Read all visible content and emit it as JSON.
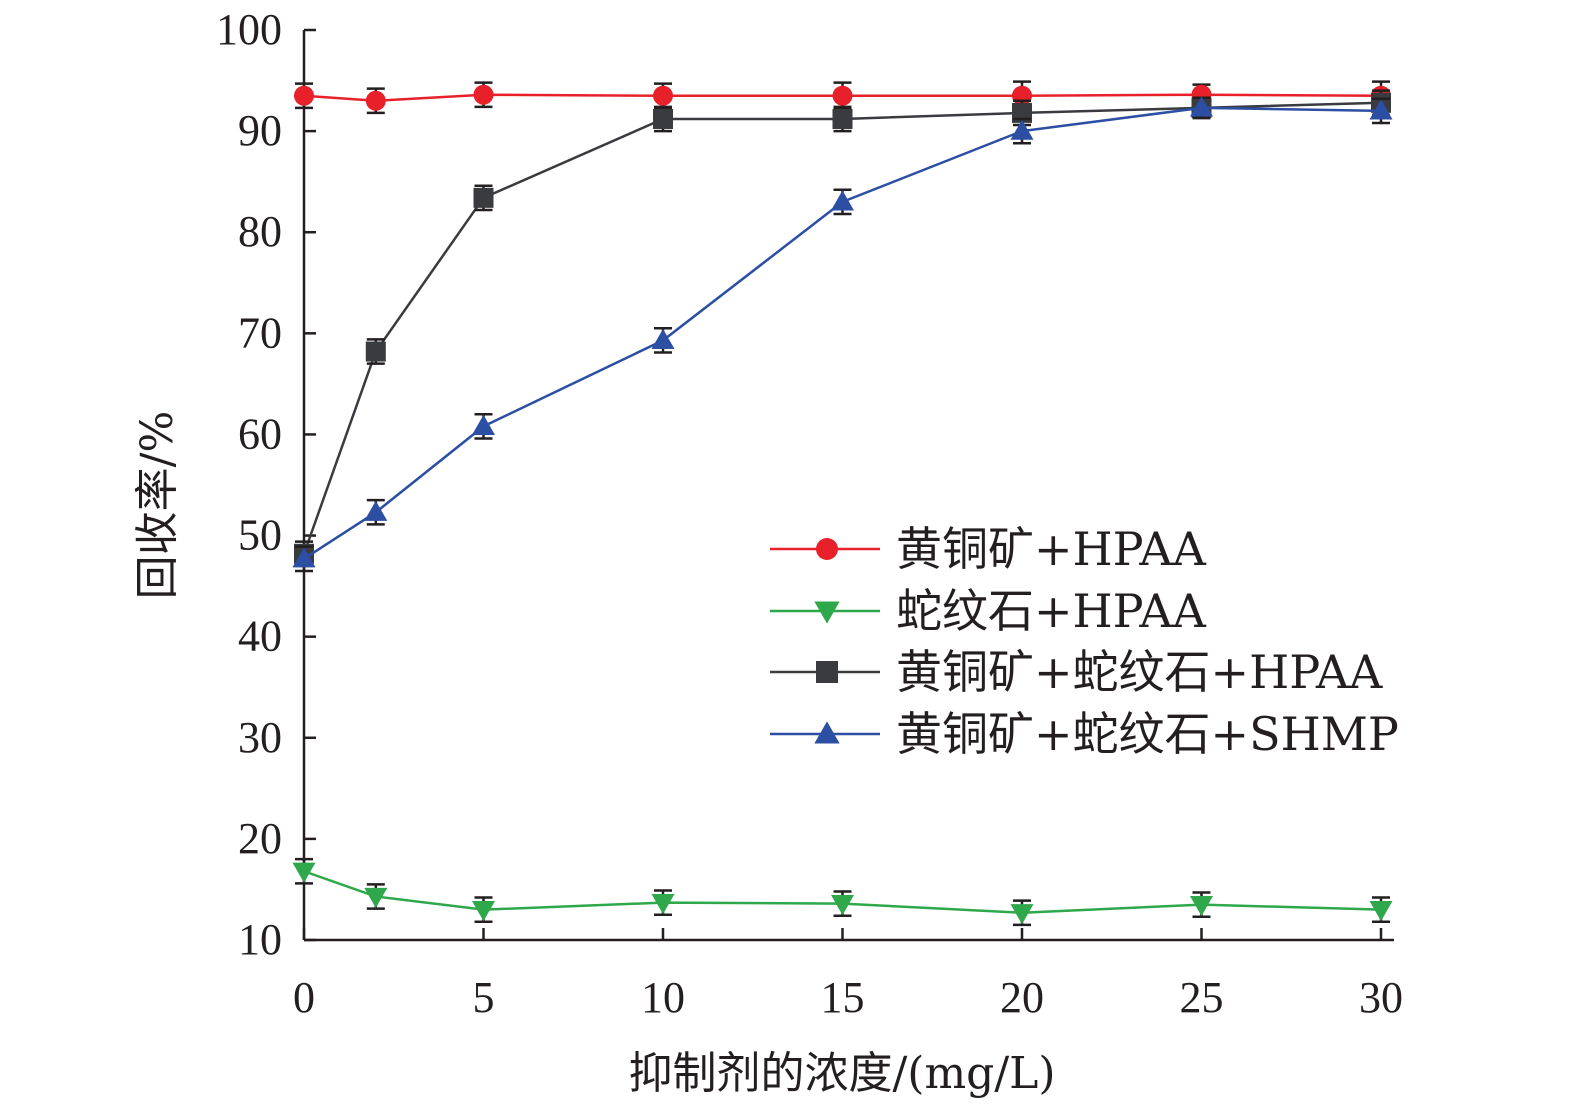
{
  "chart_data": {
    "type": "line",
    "xlabel": "抑制剂的浓度/(mg/L)",
    "ylabel": "回收率/%",
    "xlim": [
      0,
      30
    ],
    "ylim": [
      10,
      100
    ],
    "x_ticks": [
      0,
      5,
      10,
      15,
      20,
      25,
      30
    ],
    "y_ticks": [
      10,
      20,
      30,
      40,
      50,
      60,
      70,
      80,
      90,
      100
    ],
    "x_tick_labels": [
      "0",
      "5",
      "10",
      "15",
      "20",
      "25",
      "30"
    ],
    "y_tick_labels": [
      "10",
      "20",
      "30",
      "40",
      "50",
      "60",
      "70",
      "80",
      "90",
      "100"
    ],
    "grid": false,
    "legend_position": "center-right",
    "x": [
      0,
      2,
      5,
      10,
      15,
      20,
      25,
      30
    ],
    "series": [
      {
        "name": "黄铜矿+HPAA",
        "marker": "circle",
        "color": "#e8202a",
        "values": [
          93.5,
          93.0,
          93.6,
          93.5,
          93.5,
          93.5,
          93.6,
          93.5
        ],
        "errors": [
          1.2,
          1.2,
          1.2,
          1.2,
          1.3,
          1.4,
          1.0,
          1.4
        ]
      },
      {
        "name": "蛇纹石+HPAA",
        "marker": "triangle-down",
        "color": "#2ea84a",
        "values": [
          16.8,
          14.3,
          13.0,
          13.7,
          13.6,
          12.7,
          13.5,
          13.0
        ],
        "errors": [
          1.2,
          1.2,
          1.2,
          1.2,
          1.2,
          1.2,
          1.2,
          1.2
        ]
      },
      {
        "name": "黄铜矿+蛇纹石+HPAA",
        "marker": "square",
        "color": "#3a3b3f",
        "values": [
          48.2,
          68.2,
          83.4,
          91.2,
          91.2,
          91.8,
          92.3,
          92.8
        ],
        "errors": [
          1.2,
          1.2,
          1.2,
          1.2,
          1.2,
          1.2,
          1.0,
          1.2
        ]
      },
      {
        "name": "黄铜矿+蛇纹石+SHMP",
        "marker": "triangle-up",
        "color": "#2c4fa3",
        "values": [
          47.7,
          52.3,
          60.8,
          69.3,
          83.0,
          90.0,
          92.3,
          92.0
        ],
        "errors": [
          1.2,
          1.2,
          1.2,
          1.2,
          1.2,
          1.2,
          1.0,
          1.2
        ]
      }
    ]
  }
}
